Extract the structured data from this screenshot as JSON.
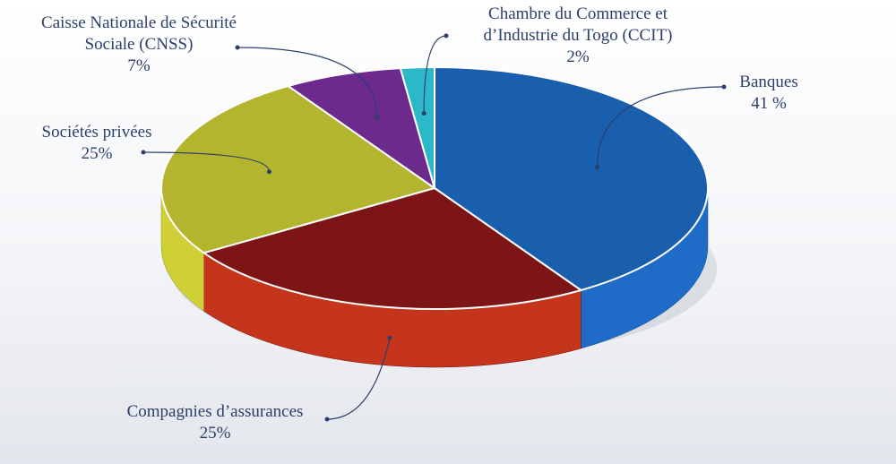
{
  "chart_data": {
    "type": "pie",
    "categories": [
      "Banques",
      "Compagnies d’assurances",
      "Sociétés privées",
      "Caisse Nationale de Sécurité\nSociale (CNSS)",
      "Chambre du Commerce et\nd’Industrie du Togo (CCIT)"
    ],
    "values": [
      41,
      25,
      25,
      7,
      2
    ],
    "value_labels": [
      "41 %",
      "25%",
      "25%",
      "7%",
      "2%"
    ],
    "colors": [
      "#1a5eae",
      "#7d1517",
      "#b4b52f",
      "#6b2a8c",
      "#2bb9c9"
    ]
  }
}
